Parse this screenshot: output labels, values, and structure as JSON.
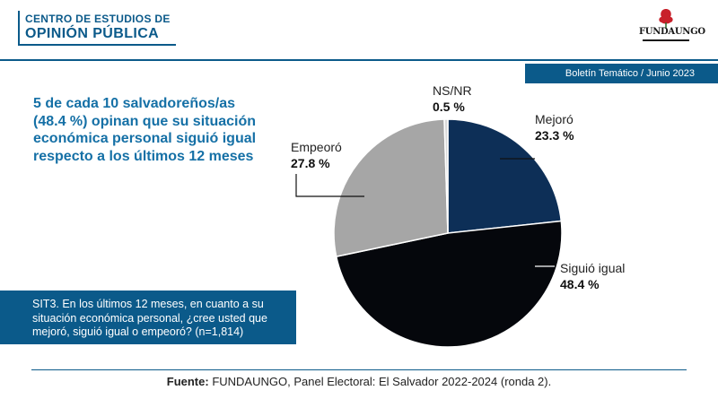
{
  "header": {
    "brand_line1": "CENTRO DE ESTUDIOS DE",
    "brand_line2": "OPINIÓN PÚBLICA",
    "logo_text": "FUNDAUNGO",
    "bulletin": "Boletín Temático / Junio 2023"
  },
  "headline": "5 de cada 10 salvadoreños/as (48.4 %) opinan que su situación económica personal siguió igual respecto a los últimos 12 meses",
  "question": "SIT3. En los últimos 12 meses, en cuanto a su situación económica personal, ¿cree usted que mejoró, siguió igual o empeoró? (n=1,814)",
  "footer": {
    "label": "Fuente:",
    "text": "FUNDAUNGO, Panel Electoral: El Salvador 2022-2024 (ronda 2)."
  },
  "colors": {
    "brand": "#0b5a8a",
    "headline": "#1570a6"
  },
  "chart_data": {
    "type": "pie",
    "slices": [
      {
        "label": "Mejoró",
        "value": 23.3,
        "display": "23.3 %",
        "color": "#0d2f57"
      },
      {
        "label": "Siguió igual",
        "value": 48.4,
        "display": "48.4 %",
        "color": "#05070c"
      },
      {
        "label": "Empeoró",
        "value": 27.8,
        "display": "27.8 %",
        "color": "#a6a6a6"
      },
      {
        "label": "NS/NR",
        "value": 0.5,
        "display": "0.5 %",
        "color": "#d9d9d9"
      }
    ]
  }
}
